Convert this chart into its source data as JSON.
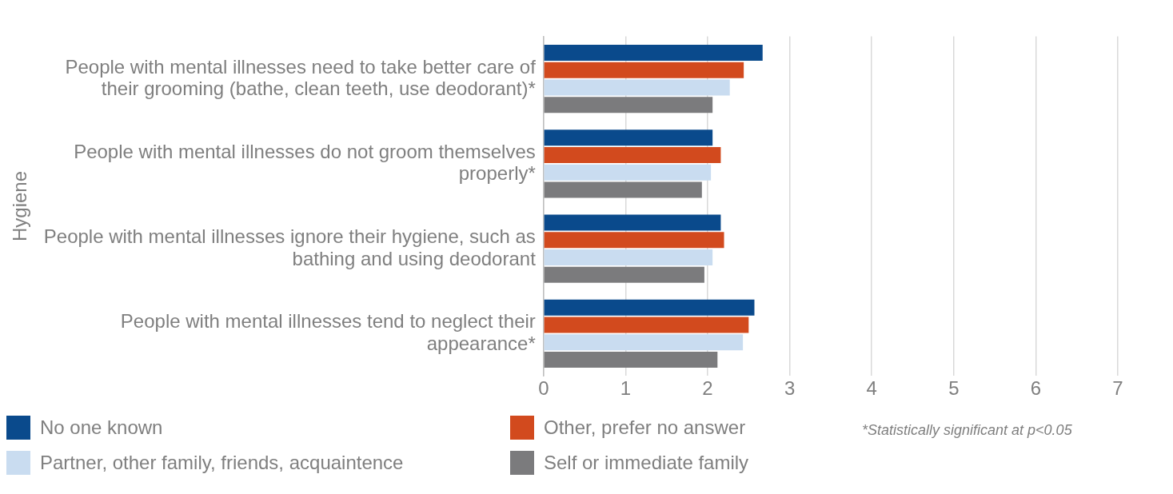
{
  "chart_data": {
    "type": "bar",
    "orientation": "horizontal",
    "ylabel": "Hygiene",
    "categories": [
      "People with mental illnesses need to take better care of their grooming (bathe, clean teeth, use deodorant)*",
      "People with mental illnesses do not groom themselves properly*",
      "People with mental illnesses ignore their hygiene, such as bathing and using deodorant",
      "People with mental illnesses tend to neglect their appearance*"
    ],
    "series": [
      {
        "name": "No one known",
        "color": "#0a4a8c",
        "values": [
          2.67,
          2.06,
          2.16,
          2.57
        ]
      },
      {
        "name": "Other, prefer no answer",
        "color": "#d24a1e",
        "values": [
          2.44,
          2.16,
          2.2,
          2.5
        ]
      },
      {
        "name": "Partner, other family, friends, acquaintence",
        "color": "#c9dcf0",
        "values": [
          2.27,
          2.04,
          2.06,
          2.43
        ]
      },
      {
        "name": "Self or immediate family",
        "color": "#7b7b7d",
        "values": [
          2.06,
          1.93,
          1.96,
          2.12
        ]
      }
    ],
    "xlim": [
      0,
      7
    ],
    "xticks": [
      0,
      1,
      2,
      3,
      4,
      5,
      6,
      7
    ],
    "grid": "x",
    "legend": "bottom",
    "annotations": [
      "*Statistically significant at p<0.05"
    ]
  }
}
